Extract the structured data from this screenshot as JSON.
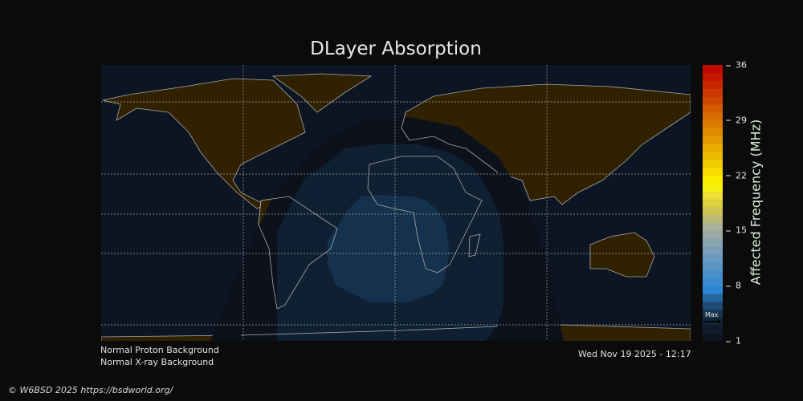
{
  "title": "DLayer Absorption",
  "status": {
    "proton": "Normal Proton Background",
    "xray": "Normal X-ray Background",
    "timestamp": "Wed Nov 19 2025 - 12:17"
  },
  "colorbar": {
    "label": "Affected Frequency (MHz)",
    "min": 1,
    "max": 36,
    "ticks": [
      "36",
      "29",
      "22",
      "15",
      "8",
      "1"
    ],
    "max_marker": "Max",
    "colors": [
      "#0d1520",
      "#101c2a",
      "#132638",
      "#1a3550",
      "#1f4a75",
      "#2366a0",
      "#2a86d0",
      "#3a8cd0",
      "#4a8ec8",
      "#5a94c4",
      "#6a9ac0",
      "#7a9eb8",
      "#8aa4b0",
      "#9aaaa8",
      "#aab09a",
      "#bcb878",
      "#ccc450",
      "#dcd040",
      "#ece034",
      "#f8f010",
      "#fcec00",
      "#f8dc00",
      "#f0cc00",
      "#ecbc00",
      "#e8ac00",
      "#e49c00",
      "#e08c00",
      "#dc7c00",
      "#d86c00",
      "#d45c00",
      "#d04800",
      "#cc3800",
      "#c82800",
      "#c41800",
      "#c00800"
    ]
  },
  "colors": {
    "background": "#0b0b0b",
    "ocean_night": "#0d1522",
    "land_night": "#302200",
    "absorption_low": "#0c111b",
    "absorption_mid": "#0f2032",
    "absorption_high": "#14314d",
    "coastline": "#a8a8a8"
  },
  "footer": "© W6BSD 2025 https://bsdworld.org/"
}
